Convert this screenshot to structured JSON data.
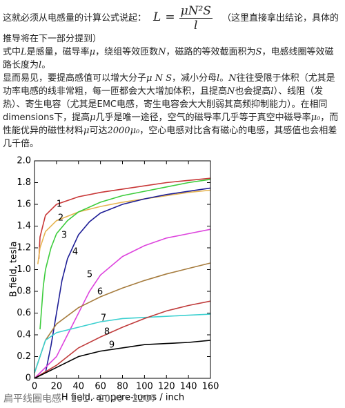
{
  "intro_before": "这就必须从电感量的计算公式说起：",
  "formula": {
    "lhs": "L",
    "equals": "=",
    "numerator": "μN²S",
    "denominator": "l"
  },
  "intro_after": "（这里直接拿出结论，具体的推导将在下一部分提到）",
  "paragraphs": [
    [
      {
        "text": "式中"
      },
      {
        "math": "L"
      },
      {
        "text": "是感量，磁导率"
      },
      {
        "math": "μ"
      },
      {
        "text": "，绕组等效匝数"
      },
      {
        "math": "N"
      },
      {
        "text": "，磁路的等效截面积为"
      },
      {
        "math": "S"
      },
      {
        "text": "，电感线圈等效磁路长度为"
      },
      {
        "math": "l"
      },
      {
        "text": "。"
      }
    ],
    [
      {
        "text": "显而易见，要提高感值可以增大分子"
      },
      {
        "math": "μ N S"
      },
      {
        "text": "，减小分母"
      },
      {
        "math": "l"
      },
      {
        "text": "。"
      },
      {
        "math": "N"
      },
      {
        "text": "往往受限于体积（尤其是功率电感的线非常粗，每一匝都会大大增加体积，且提高"
      },
      {
        "math": "N"
      },
      {
        "text": "也会提高"
      },
      {
        "math": "l"
      },
      {
        "text": "）、线阻（发热）、寄生电容（尤其是EMC电感，寄生电容会大大削弱其高频抑制能力）。在相同dimensions下，提高"
      },
      {
        "math": "μ"
      },
      {
        "text": "几乎是唯一途径，空气的磁导率几乎等于真空中磁导率"
      },
      {
        "math": "μ₀"
      },
      {
        "text": "，而性能优异的磁性材料"
      },
      {
        "math": "μ"
      },
      {
        "text": "可达"
      },
      {
        "math": "2000μ₀"
      },
      {
        "text": "，空心电感对比含有磁心的电感，其感值也会相差几千倍。"
      }
    ]
  ],
  "caption": "扁平线圈电感 · 101 · 2000 · 2207",
  "chart_data": {
    "type": "line",
    "xlabel": "H field, ampere-turns / inch",
    "ylabel": "B field, tesla",
    "xlim": [
      0,
      160
    ],
    "xticks": [
      0,
      20,
      40,
      60,
      80,
      100,
      120,
      140,
      160
    ],
    "ylim": [
      0,
      2
    ],
    "yticks": [
      0,
      0.2,
      0.4,
      0.6,
      0.8,
      {
        "value": 1,
        "label": "1.0"
      },
      1.2,
      1.4,
      1.6,
      1.8,
      {
        "value": 2,
        "label": "2.0"
      }
    ],
    "series": [
      {
        "name": "1",
        "color": "#c83737",
        "x": [
          4,
          5,
          10,
          20,
          40,
          60,
          80,
          100,
          120,
          140,
          160
        ],
        "values": [
          1.1,
          1.3,
          1.5,
          1.6,
          1.67,
          1.71,
          1.74,
          1.77,
          1.8,
          1.82,
          1.84
        ]
      },
      {
        "name": "2",
        "color": "#e6b450",
        "x": [
          3,
          5,
          10,
          20,
          40,
          60,
          80,
          100,
          120,
          140,
          160
        ],
        "values": [
          1.05,
          1.2,
          1.35,
          1.45,
          1.53,
          1.58,
          1.62,
          1.65,
          1.68,
          1.71,
          1.73
        ]
      },
      {
        "name": "3",
        "color": "#3ccc3c",
        "x": [
          5,
          8,
          10,
          15,
          20,
          30,
          40,
          60,
          80,
          100,
          120,
          140,
          160
        ],
        "values": [
          0.45,
          0.85,
          1.0,
          1.2,
          1.33,
          1.45,
          1.53,
          1.62,
          1.68,
          1.72,
          1.76,
          1.8,
          1.83
        ]
      },
      {
        "name": "4",
        "color": "#1e1e96",
        "x": [
          10,
          15,
          20,
          25,
          30,
          40,
          50,
          60,
          80,
          100,
          120,
          140,
          160
        ],
        "values": [
          0.05,
          0.3,
          0.6,
          0.9,
          1.1,
          1.32,
          1.44,
          1.52,
          1.6,
          1.65,
          1.69,
          1.72,
          1.75
        ]
      },
      {
        "name": "5",
        "color": "#dd44dd",
        "x": [
          0,
          20,
          30,
          40,
          50,
          60,
          80,
          100,
          120,
          140,
          160
        ],
        "values": [
          0,
          0.2,
          0.4,
          0.6,
          0.8,
          0.95,
          1.12,
          1.22,
          1.29,
          1.33,
          1.37
        ]
      },
      {
        "name": "6",
        "color": "#a67c3e",
        "x": [
          0,
          10,
          20,
          40,
          60,
          80,
          100,
          120,
          140,
          160
        ],
        "values": [
          0.05,
          0.35,
          0.5,
          0.65,
          0.75,
          0.83,
          0.9,
          0.96,
          1.01,
          1.06
        ]
      },
      {
        "name": "7",
        "color": "#3cd0d0",
        "x": [
          0,
          10,
          20,
          40,
          60,
          80,
          100,
          120,
          140,
          160
        ],
        "values": [
          0.05,
          0.35,
          0.42,
          0.47,
          0.52,
          0.55,
          0.56,
          0.57,
          0.58,
          0.59
        ]
      },
      {
        "name": "8",
        "color": "#c03c3c",
        "x": [
          0,
          20,
          40,
          60,
          80,
          100,
          120,
          140,
          160
        ],
        "values": [
          0,
          0.12,
          0.28,
          0.38,
          0.47,
          0.55,
          0.62,
          0.67,
          0.71
        ]
      },
      {
        "name": "9",
        "color": "#000000",
        "x": [
          0,
          20,
          40,
          60,
          80,
          100,
          120,
          140,
          160
        ],
        "values": [
          0,
          0.1,
          0.2,
          0.25,
          0.28,
          0.31,
          0.32,
          0.33,
          0.35
        ]
      }
    ]
  }
}
